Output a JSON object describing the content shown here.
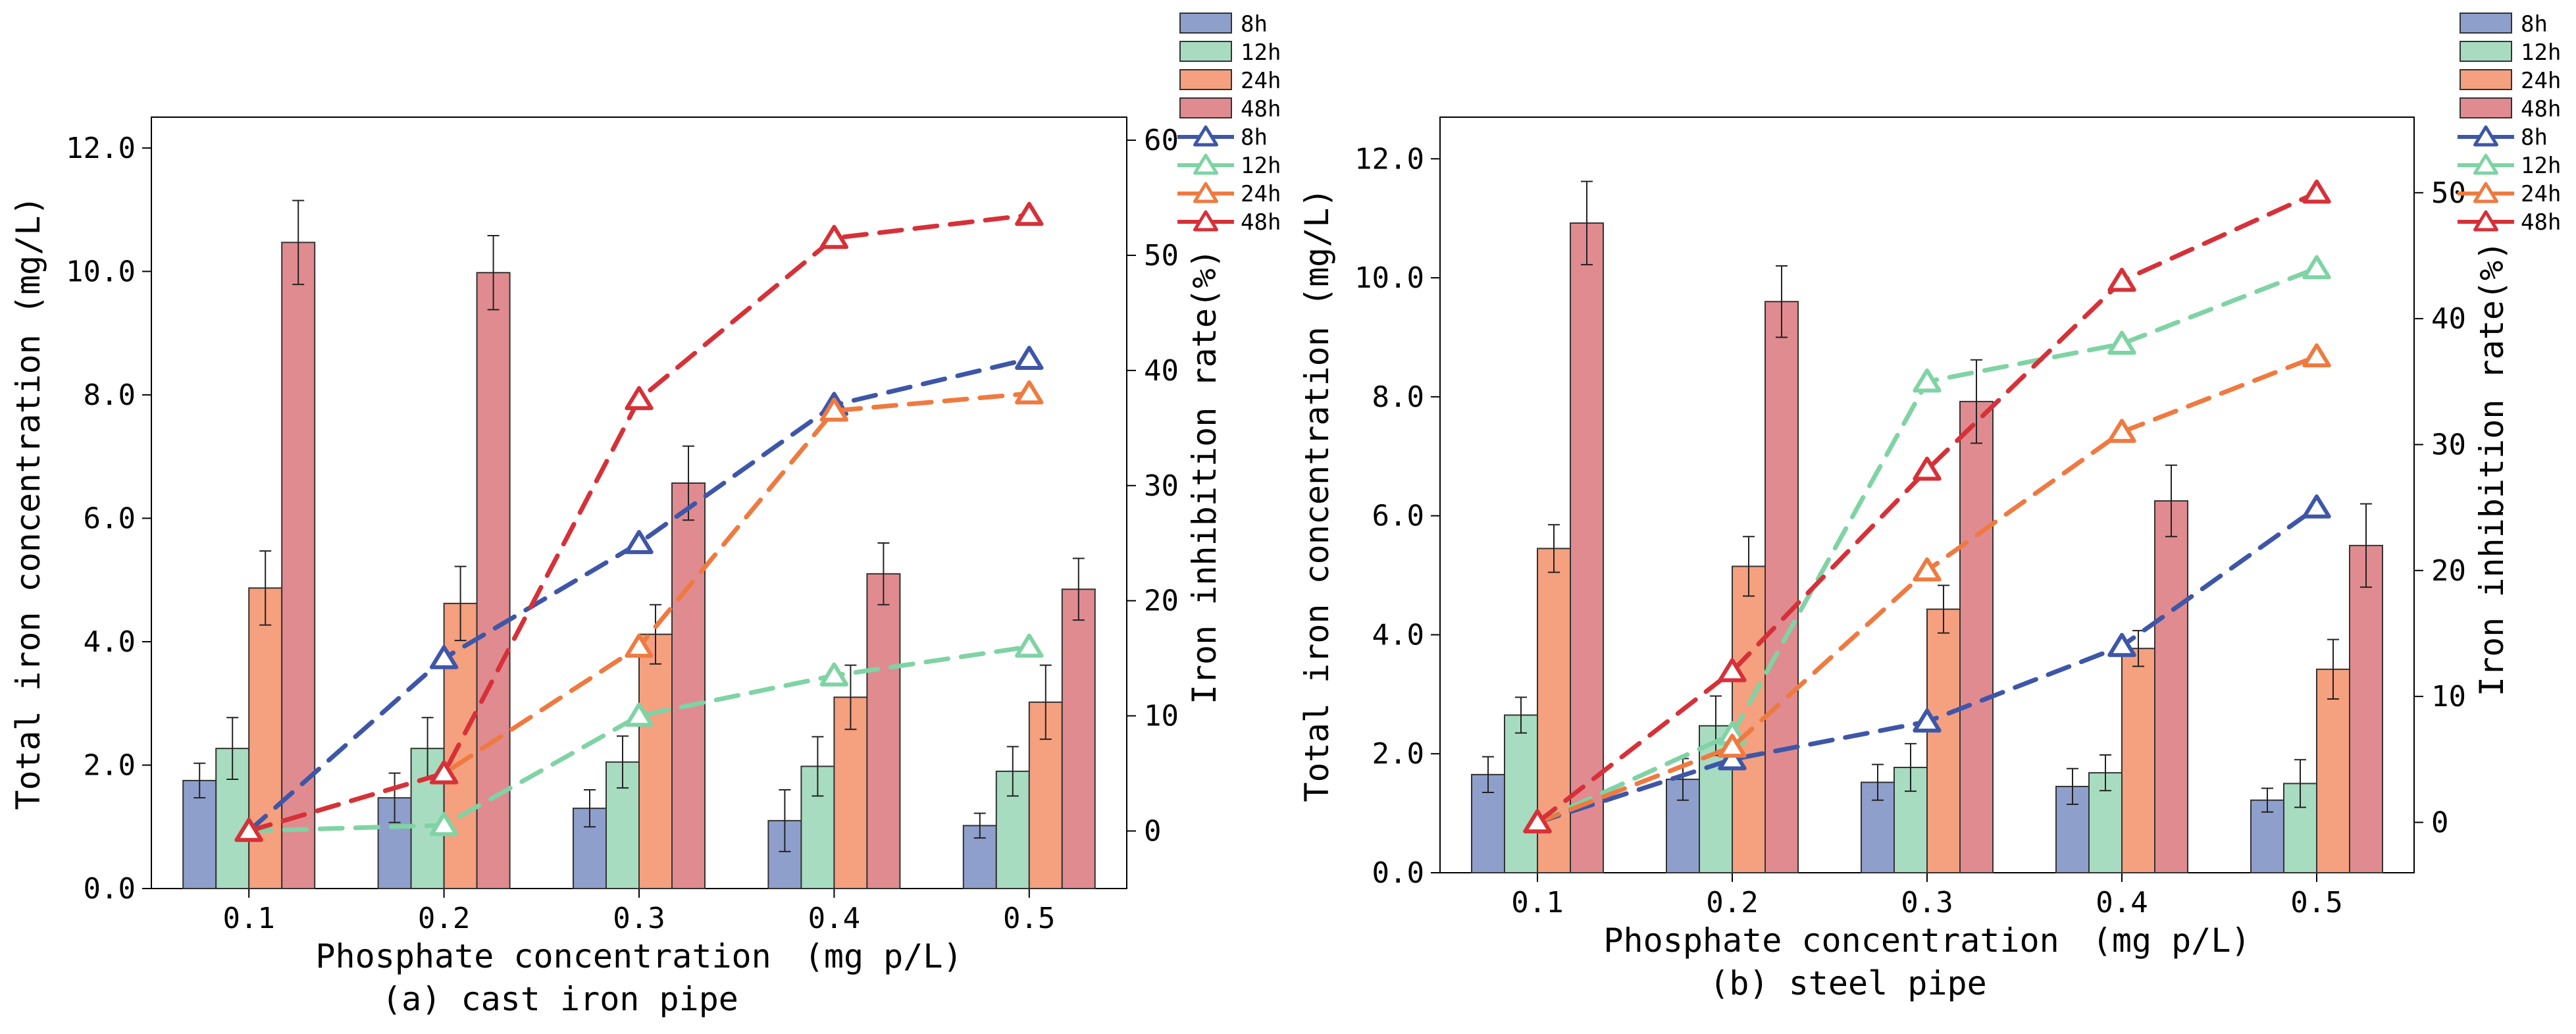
{
  "chart_data": [
    {
      "type": "bar+line",
      "caption": "(a) cast iron pipe",
      "xlabel": "Phosphate concentration　(mg p/L)",
      "ylabel_left": "Total iron concentration (mg/L)",
      "ylabel_right": "Iron inhibition rate(%)",
      "categories": [
        "0.1",
        "0.2",
        "0.3",
        "0.4",
        "0.5"
      ],
      "y_left": {
        "min": 0,
        "max": 12.5,
        "ticks": [
          0,
          2,
          4,
          6,
          8,
          10,
          12
        ],
        "tick_labels": [
          "0.0",
          "2.0",
          "4.0",
          "6.0",
          "8.0",
          "10.0",
          "12.0"
        ]
      },
      "y_right": {
        "min": -5,
        "max": 62,
        "ticks": [
          0,
          10,
          20,
          30,
          40,
          50,
          60
        ],
        "tick_labels": [
          "0",
          "10",
          "20",
          "30",
          "40",
          "50",
          "60"
        ]
      },
      "bar_series": [
        {
          "name": "8h",
          "color": "#8f9fcc",
          "values": [
            1.75,
            1.47,
            1.3,
            1.1,
            1.02
          ],
          "errors": [
            0.28,
            0.4,
            0.3,
            0.5,
            0.2
          ]
        },
        {
          "name": "12h",
          "color": "#a8dcc0",
          "values": [
            2.27,
            2.27,
            2.05,
            1.98,
            1.9
          ],
          "errors": [
            0.5,
            0.5,
            0.42,
            0.48,
            0.4
          ]
        },
        {
          "name": "24h",
          "color": "#f5a07e",
          "values": [
            4.87,
            4.62,
            4.12,
            3.1,
            3.02
          ],
          "errors": [
            0.6,
            0.6,
            0.48,
            0.52,
            0.6
          ]
        },
        {
          "name": "48h",
          "color": "#e08b90",
          "values": [
            10.47,
            9.98,
            6.57,
            5.1,
            4.85
          ],
          "errors": [
            0.68,
            0.6,
            0.6,
            0.5,
            0.5
          ]
        }
      ],
      "line_series": [
        {
          "name": "8h",
          "color": "#3e56a8",
          "values": [
            0,
            15,
            25,
            37,
            41
          ]
        },
        {
          "name": "12h",
          "color": "#7fd3a4",
          "values": [
            0,
            0.5,
            10,
            13.5,
            16
          ]
        },
        {
          "name": "24h",
          "color": "#ef7a40",
          "values": [
            0,
            5,
            16,
            36.5,
            38
          ]
        },
        {
          "name": "48h",
          "color": "#d63138",
          "values": [
            0,
            5,
            37.5,
            51.5,
            53.5
          ]
        }
      ],
      "legend": {
        "bars": [
          "8h",
          "12h",
          "24h",
          "48h"
        ],
        "lines": [
          "8h",
          "12h",
          "24h",
          "48h"
        ]
      }
    },
    {
      "type": "bar+line",
      "caption": "(b) steel pipe",
      "xlabel": "Phosphate concentration　(mg p/L)",
      "ylabel_left": "Total iron concentration (mg/L)",
      "ylabel_right": "Iron inhibition rate(%)",
      "categories": [
        "0.1",
        "0.2",
        "0.3",
        "0.4",
        "0.5"
      ],
      "y_left": {
        "min": 0,
        "max": 12.7,
        "ticks": [
          0,
          2,
          4,
          6,
          8,
          10,
          12
        ],
        "tick_labels": [
          "0.0",
          "2.0",
          "4.0",
          "6.0",
          "8.0",
          "10.0",
          "12.0"
        ]
      },
      "y_right": {
        "min": -4,
        "max": 56,
        "ticks": [
          0,
          10,
          20,
          30,
          40,
          50
        ],
        "tick_labels": [
          "0",
          "10",
          "20",
          "30",
          "40",
          "50"
        ]
      },
      "bar_series": [
        {
          "name": "8h",
          "color": "#8f9fcc",
          "values": [
            1.65,
            1.57,
            1.52,
            1.45,
            1.22
          ],
          "errors": [
            0.3,
            0.35,
            0.3,
            0.3,
            0.2
          ]
        },
        {
          "name": "12h",
          "color": "#a8dcc0",
          "values": [
            2.65,
            2.47,
            1.77,
            1.68,
            1.5
          ],
          "errors": [
            0.3,
            0.5,
            0.4,
            0.3,
            0.4
          ]
        },
        {
          "name": "24h",
          "color": "#f5a07e",
          "values": [
            5.45,
            5.15,
            4.43,
            3.77,
            3.42
          ],
          "errors": [
            0.4,
            0.5,
            0.4,
            0.3,
            0.5
          ]
        },
        {
          "name": "48h",
          "color": "#e08b90",
          "values": [
            10.92,
            9.6,
            7.92,
            6.25,
            5.5
          ],
          "errors": [
            0.7,
            0.6,
            0.7,
            0.6,
            0.7
          ]
        }
      ],
      "line_series": [
        {
          "name": "8h",
          "color": "#3e56a8",
          "values": [
            0,
            5,
            8,
            14,
            25
          ]
        },
        {
          "name": "12h",
          "color": "#7fd3a4",
          "values": [
            0,
            7,
            35,
            38,
            44
          ]
        },
        {
          "name": "24h",
          "color": "#ef7a40",
          "values": [
            0,
            6,
            20,
            31,
            37
          ]
        },
        {
          "name": "48h",
          "color": "#d63138",
          "values": [
            0,
            12,
            28,
            43,
            50
          ]
        }
      ],
      "legend": {
        "bars": [
          "8h",
          "12h",
          "24h",
          "48h"
        ],
        "lines": [
          "8h",
          "12h",
          "24h",
          "48h"
        ]
      }
    }
  ]
}
